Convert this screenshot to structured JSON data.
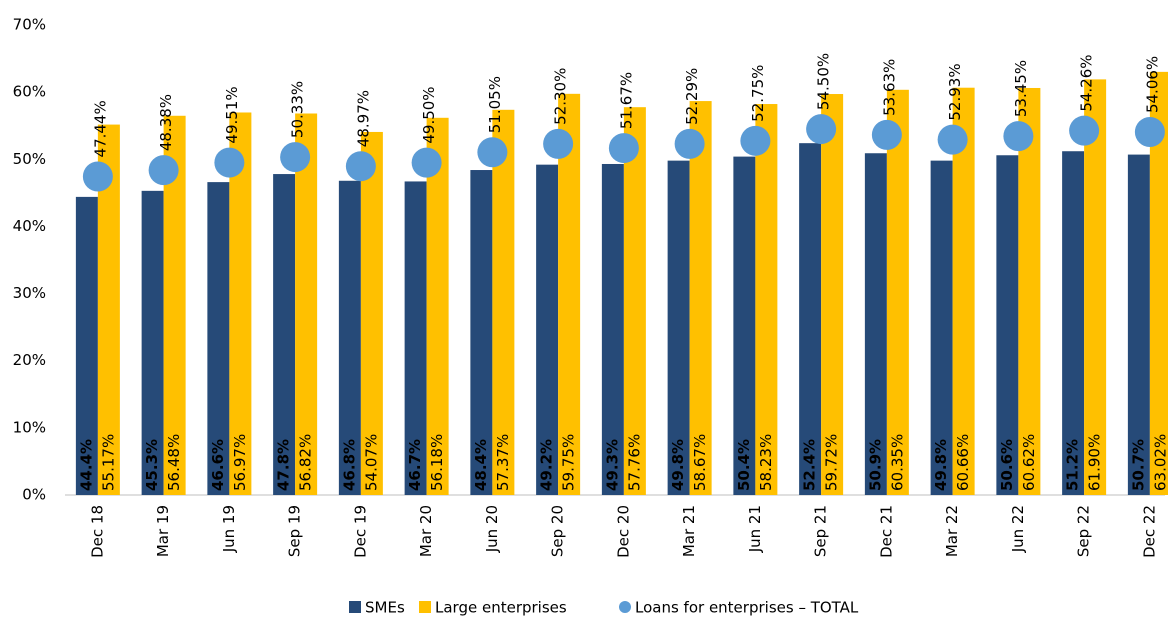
{
  "chart_data": {
    "type": "bar",
    "categories": [
      "Dec 18",
      "Mar 19",
      "Jun 19",
      "Sep 19",
      "Dec 19",
      "Mar 20",
      "Jun 20",
      "Sep 20",
      "Dec 20",
      "Mar 21",
      "Jun 21",
      "Sep 21",
      "Dec 21",
      "Mar 22",
      "Jun 22",
      "Sep 22",
      "Dec 22"
    ],
    "series": [
      {
        "name": "SMEs",
        "color": "#264a78",
        "type": "bar",
        "values": [
          44.4,
          45.3,
          46.6,
          47.8,
          46.8,
          46.7,
          48.4,
          49.2,
          49.3,
          49.8,
          50.4,
          52.4,
          50.9,
          49.8,
          50.6,
          51.2,
          50.7
        ],
        "value_labels": [
          "44.4%",
          "45.3%",
          "46.6%",
          "47.8%",
          "46.8%",
          "46.7%",
          "48.4%",
          "49.2%",
          "49.3%",
          "49.8%",
          "50.4%",
          "52.4%",
          "50.9%",
          "49.8%",
          "50.6%",
          "51.2%",
          "50.7%"
        ]
      },
      {
        "name": "Large enterprises",
        "color": "#ffc000",
        "type": "bar",
        "values": [
          55.17,
          56.48,
          56.97,
          56.82,
          54.07,
          56.18,
          57.37,
          59.75,
          57.76,
          58.67,
          58.23,
          59.72,
          60.35,
          60.66,
          60.62,
          61.9,
          63.02
        ],
        "value_labels": [
          "55.17%",
          "56.48%",
          "56.97%",
          "56.82%",
          "54.07%",
          "56.18%",
          "57.37%",
          "59.75%",
          "57.76%",
          "58.67%",
          "58.23%",
          "59.72%",
          "60.35%",
          "60.66%",
          "60.62%",
          "61.90%",
          "63.02%"
        ]
      },
      {
        "name": "Loans for enterprises – TOTAL",
        "color": "#5b9bd5",
        "type": "scatter",
        "values": [
          47.44,
          48.38,
          49.51,
          50.33,
          48.97,
          49.5,
          51.05,
          52.3,
          51.67,
          52.29,
          52.75,
          54.5,
          53.63,
          52.93,
          53.45,
          54.26,
          54.06
        ],
        "value_labels": [
          "47.44%",
          "48.38%",
          "49.51%",
          "50.33%",
          "48.97%",
          "49.50%",
          "51.05%",
          "52.30%",
          "51.67%",
          "52.29%",
          "52.75%",
          "54.50%",
          "53.63%",
          "52.93%",
          "53.45%",
          "54.26%",
          "54.06%"
        ]
      }
    ],
    "ylim": [
      0,
      70
    ],
    "yticks": [
      {
        "value": 0,
        "label": "0%"
      },
      {
        "value": 10,
        "label": "10%"
      },
      {
        "value": 20,
        "label": "20%"
      },
      {
        "value": 30,
        "label": "30%"
      },
      {
        "value": 40,
        "label": "40%"
      },
      {
        "value": 50,
        "label": "50%"
      },
      {
        "value": 60,
        "label": "60%"
      },
      {
        "value": 70,
        "label": "70%"
      }
    ],
    "grid": false,
    "legend": "bottom"
  }
}
